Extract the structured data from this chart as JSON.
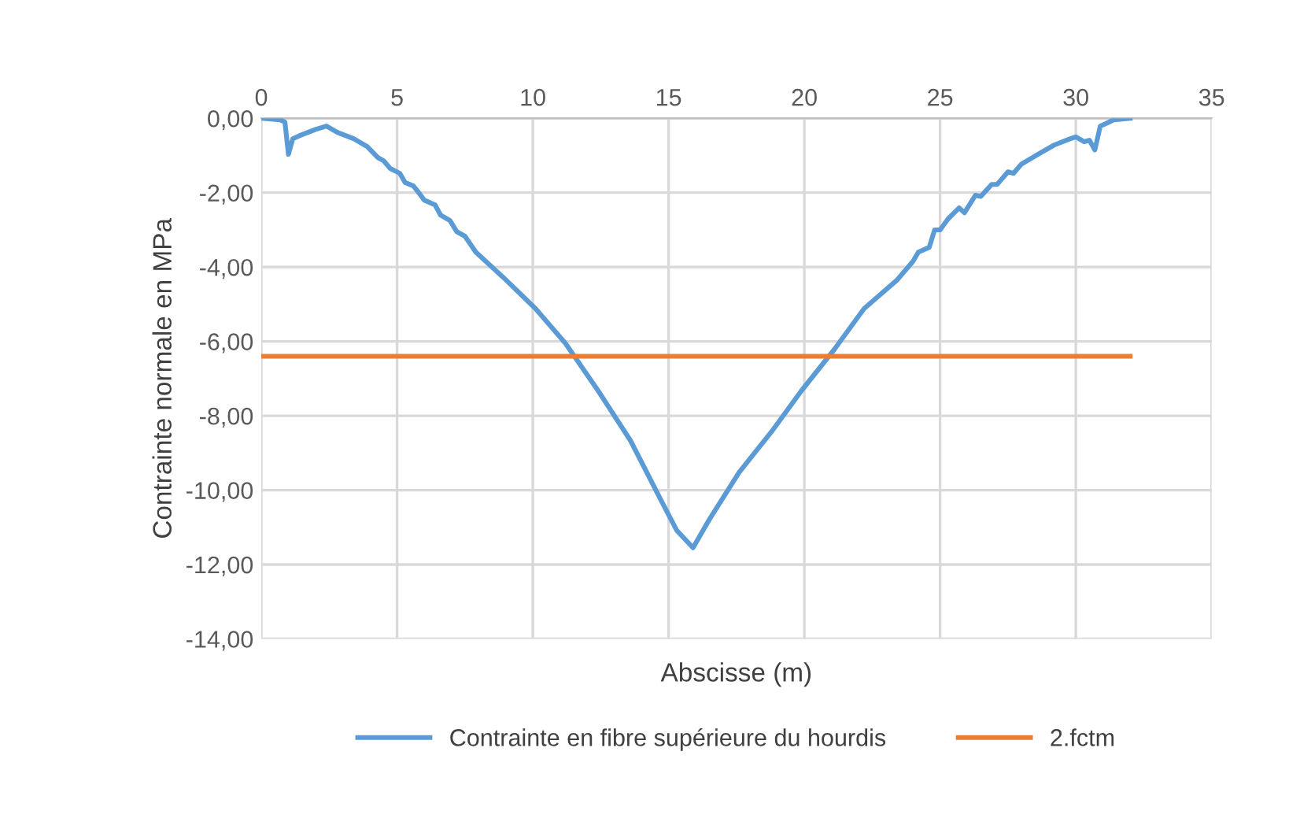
{
  "chart_data": {
    "type": "line",
    "xlabel": "Abscisse (m)",
    "ylabel": "Contrainte normale en MPa",
    "xlim": [
      0,
      35
    ],
    "xticks": [
      0,
      5,
      10,
      15,
      20,
      25,
      30,
      35
    ],
    "ylim": [
      -14,
      0
    ],
    "yticks": [
      {
        "value": 0,
        "label": "0,00"
      },
      {
        "value": -2,
        "label": "-2,00"
      },
      {
        "value": -4,
        "label": "-4,00"
      },
      {
        "value": -6,
        "label": "-6,00"
      },
      {
        "value": -8,
        "label": "-8,00"
      },
      {
        "value": -10,
        "label": "-10,00"
      },
      {
        "value": -12,
        "label": "-12,00"
      },
      {
        "value": -14,
        "label": "-14,00"
      }
    ],
    "grid": true,
    "legend": "bottom",
    "marker": "none",
    "line_style": "solid",
    "series": [
      {
        "name": "Contrainte en fibre supérieure du hourdis",
        "color": "#5b9bd5",
        "x": [
          0,
          0.7,
          0.87,
          1.0,
          1.16,
          1.4,
          2.0,
          2.4,
          2.8,
          3.4,
          3.9,
          4.3,
          4.5,
          4.75,
          5.1,
          5.3,
          5.6,
          5.8,
          6.0,
          6.4,
          6.6,
          6.95,
          7.2,
          7.5,
          7.9,
          8.9,
          10.1,
          11.2,
          12.4,
          13.6,
          14.7,
          15.3,
          15.9,
          16.5,
          17.6,
          18.8,
          19.9,
          21.1,
          22.2,
          23.4,
          24.0,
          24.2,
          24.6,
          24.8,
          25.0,
          25.3,
          25.7,
          25.9,
          26.3,
          26.5,
          26.9,
          27.1,
          27.5,
          27.7,
          28.0,
          28.6,
          29.2,
          29.8,
          30.0,
          30.3,
          30.5,
          30.7,
          30.9,
          31.4,
          32.0
        ],
        "values": [
          0,
          -0.04,
          -0.1,
          -0.97,
          -0.55,
          -0.47,
          -0.3,
          -0.21,
          -0.38,
          -0.55,
          -0.76,
          -1.06,
          -1.14,
          -1.35,
          -1.48,
          -1.73,
          -1.82,
          -2.0,
          -2.2,
          -2.33,
          -2.6,
          -2.75,
          -3.05,
          -3.17,
          -3.6,
          -4.27,
          -5.12,
          -6.05,
          -7.32,
          -8.67,
          -10.24,
          -11.08,
          -11.55,
          -10.79,
          -9.52,
          -8.42,
          -7.32,
          -6.22,
          -5.12,
          -4.36,
          -3.85,
          -3.6,
          -3.47,
          -3.0,
          -3.0,
          -2.7,
          -2.41,
          -2.54,
          -2.07,
          -2.1,
          -1.78,
          -1.78,
          -1.44,
          -1.48,
          -1.23,
          -0.97,
          -0.72,
          -0.55,
          -0.5,
          -0.63,
          -0.59,
          -0.85,
          -0.21,
          -0.04,
          0
        ]
      },
      {
        "name": "2.fctm",
        "color": "#ed7d31",
        "x": [
          0,
          32
        ],
        "values": [
          -6.4,
          -6.4
        ]
      }
    ]
  }
}
